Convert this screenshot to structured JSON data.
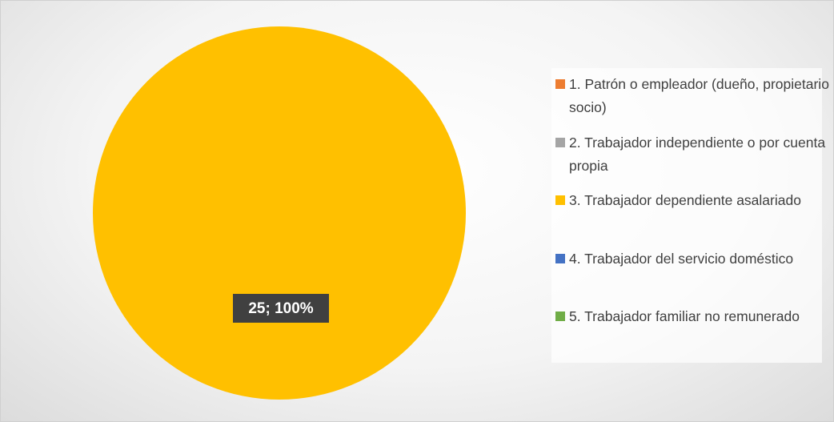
{
  "chart_data": {
    "type": "pie",
    "categories": [
      "1. Patrón o empleador (dueño, propietario socio)",
      "2. Trabajador independiente o por cuenta propia",
      "3. Trabajador dependiente asalariado",
      "4. Trabajador del servicio doméstico",
      "5. Trabajador familiar no remunerado"
    ],
    "values": [
      0,
      0,
      25,
      0,
      0
    ],
    "value_labels": [
      null,
      null,
      "25; 100%",
      null,
      null
    ],
    "colors": [
      "#ed7d31",
      "#a5a5a5",
      "#ffc000",
      "#4472c4",
      "#70ad47"
    ],
    "legend": "right"
  }
}
